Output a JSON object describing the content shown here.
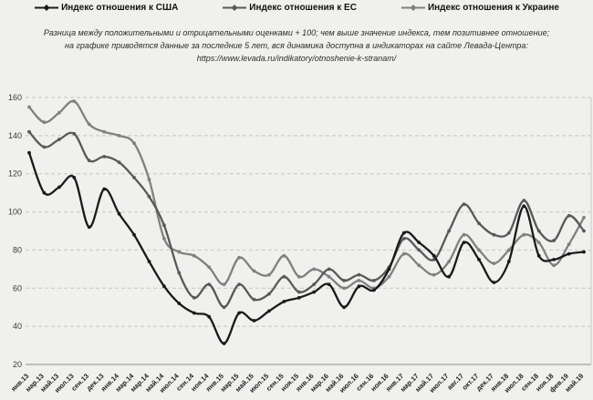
{
  "legend": {
    "items": [
      {
        "label": "Индекс отношения к США",
        "color": "#1a1a1a"
      },
      {
        "label": "Индекс отношения к ЕС",
        "color": "#595959"
      },
      {
        "label": "Индекс отношения к Украине",
        "color": "#808080"
      }
    ]
  },
  "subtitle": {
    "line1": "Разница между положительными и отрицательными оценками + 100;  чем выше значение индекса, тем позитивнее отношение;",
    "line2": "на графике приводятся данные за последние 5 лет, вся динамика доступна в индикаторах на сайте Левада-Центра:",
    "line3": "https://www.levada.ru/indikatory/otnoshenie-k-stranam/"
  },
  "chart_data": {
    "type": "line",
    "title": "",
    "xlabel": "",
    "ylabel": "",
    "ylim": [
      20,
      160
    ],
    "ytick_step": 20,
    "grid": "horizontal-dashed",
    "legend_position": "top",
    "background": "#f0f0ee",
    "categories": [
      "янв.13",
      "мар.13",
      "май.13",
      "июл.13",
      "сен.13",
      "дек.13",
      "янв.14",
      "мар.14",
      "мар.14",
      "май.14",
      "июл.14",
      "сен.14",
      "ноя.14",
      "янв.15",
      "мар.15",
      "май.15",
      "июл.15",
      "сен.15",
      "ноя.15",
      "янв.16",
      "мар.16",
      "май.16",
      "июл.16",
      "сен.16",
      "ноя.16",
      "янв.17",
      "мар.17",
      "май.17",
      "июл.17",
      "авг.17",
      "окт.17",
      "дек.17",
      "янв.18",
      "июл.18",
      "сен.18",
      "ноя.18",
      "фев.19",
      "май.19"
    ],
    "series": [
      {
        "name": "Индекс отношения к США",
        "color": "#1a1a1a",
        "values": [
          131,
          110,
          113,
          118,
          92,
          112,
          99,
          88,
          74,
          61,
          52,
          47,
          45,
          31,
          47,
          43,
          48,
          53,
          55,
          58,
          62,
          50,
          61,
          59,
          70,
          89,
          84,
          77,
          66,
          84,
          75,
          63,
          74,
          103,
          77,
          75,
          78,
          79
        ]
      },
      {
        "name": "Индекс отношения к ЕС",
        "color": "#595959",
        "values": [
          142,
          134,
          138,
          141,
          127,
          129,
          126,
          118,
          108,
          93,
          68,
          55,
          62,
          50,
          62,
          54,
          57,
          66,
          58,
          62,
          70,
          64,
          67,
          64,
          71,
          86,
          80,
          75,
          90,
          104,
          94,
          88,
          89,
          106,
          90,
          85,
          98,
          90
        ]
      },
      {
        "name": "Индекс отношения к Украине",
        "color": "#808080",
        "values": [
          155,
          147,
          152,
          158,
          146,
          142,
          140,
          136,
          117,
          86,
          79,
          77,
          71,
          62,
          76,
          69,
          67,
          77,
          66,
          70,
          66,
          60,
          64,
          60,
          66,
          78,
          72,
          67,
          74,
          88,
          80,
          73,
          80,
          88,
          84,
          72,
          83,
          97
        ]
      }
    ]
  }
}
